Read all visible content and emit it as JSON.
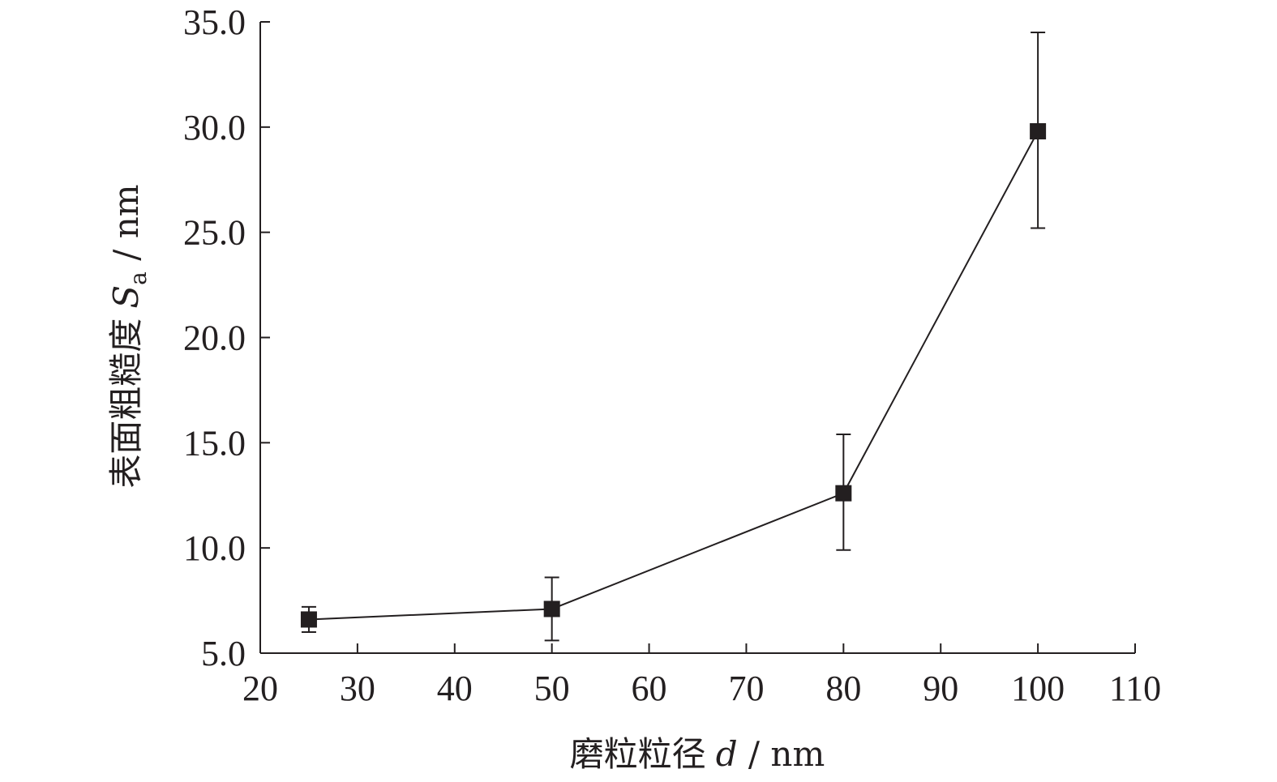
{
  "chart_data": {
    "type": "line",
    "xlabel": {
      "text": "磨粒粒径",
      "symbol": "d",
      "unit": " / nm"
    },
    "ylabel": {
      "text": "表面粗糙度",
      "symbol": "S",
      "subscript": "a",
      "unit": " / nm"
    },
    "xlim": [
      20,
      110
    ],
    "ylim": [
      5.0,
      35.0
    ],
    "xticks": [
      20,
      30,
      40,
      50,
      60,
      70,
      80,
      90,
      100,
      110
    ],
    "xtick_labels": [
      "20",
      "30",
      "40",
      "50",
      "60",
      "70",
      "80",
      "90",
      "100",
      "110"
    ],
    "yticks": [
      5.0,
      10.0,
      15.0,
      20.0,
      25.0,
      30.0,
      35.0
    ],
    "ytick_labels": [
      "5.0",
      "10.0",
      "15.0",
      "20.0",
      "25.0",
      "30.0",
      "35.0"
    ],
    "grid": false,
    "series": [
      {
        "marker": "square",
        "color": "#231f20",
        "points": [
          {
            "x": 25,
            "y": 6.6,
            "err_low": 6.0,
            "err_high": 7.2
          },
          {
            "x": 50,
            "y": 7.1,
            "err_low": 5.6,
            "err_high": 8.6
          },
          {
            "x": 80,
            "y": 12.6,
            "err_low": 9.9,
            "err_high": 15.4
          },
          {
            "x": 100,
            "y": 29.8,
            "err_low": 25.2,
            "err_high": 34.5
          }
        ]
      }
    ]
  }
}
